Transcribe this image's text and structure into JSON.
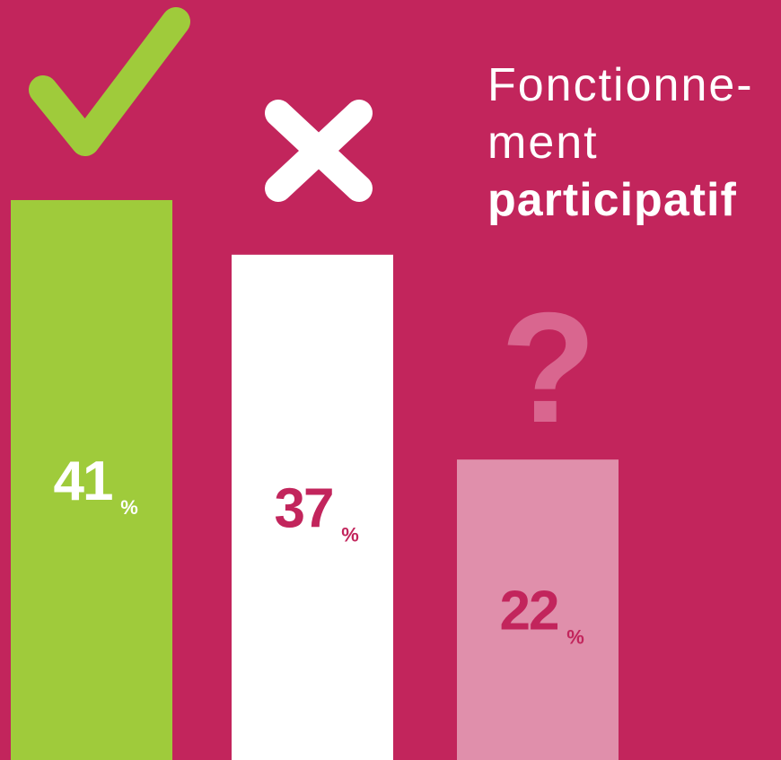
{
  "chart_data": {
    "type": "bar",
    "title_lines": [
      "Fonctionne-",
      "ment",
      "participatif"
    ],
    "categories": [
      null,
      null,
      "?"
    ],
    "values": [
      41,
      37,
      22
    ],
    "unit": "%",
    "colors": [
      "#9fcb3b",
      "#ffffff",
      "#e08fab"
    ],
    "label_colors": [
      "#ffffff",
      "#c2255c",
      "#c2255c"
    ],
    "background": "#c2255c"
  }
}
